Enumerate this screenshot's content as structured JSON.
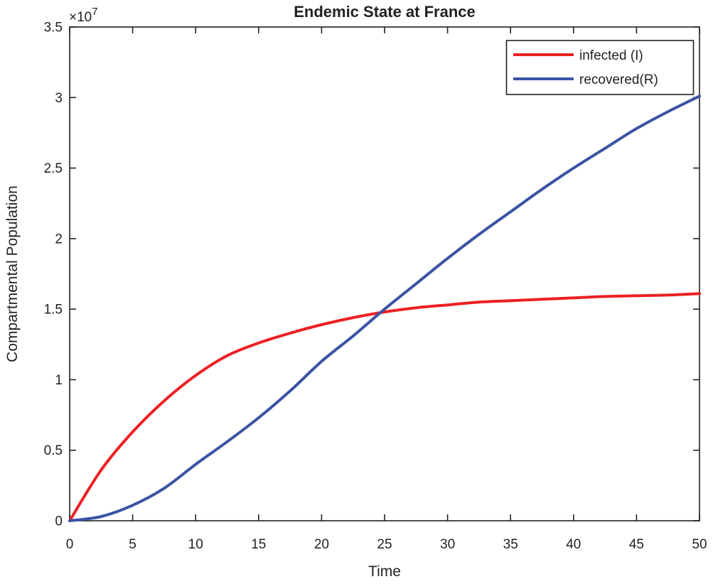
{
  "figure": {
    "background_color": "#ffffff",
    "text_color": "#231f20",
    "axes_color": "#231f20"
  },
  "chart_data": {
    "type": "line",
    "title": "Endemic State at France",
    "xlabel": "Time",
    "ylabel": "Compartmental Population",
    "xlim": [
      0,
      50
    ],
    "ylim": [
      0,
      35000000
    ],
    "grid": false,
    "box": true,
    "legend_position": "top-right-inside",
    "x_tick_values": [
      0,
      5,
      10,
      15,
      20,
      25,
      30,
      35,
      40,
      45,
      50
    ],
    "x_tick_labels": [
      "0",
      "5",
      "10",
      "15",
      "20",
      "25",
      "30",
      "35",
      "40",
      "45",
      "50"
    ],
    "y_tick_values": [
      0,
      5000000,
      10000000,
      15000000,
      20000000,
      25000000,
      30000000,
      35000000
    ],
    "y_tick_labels": [
      "0",
      "0.5",
      "1",
      "1.5",
      "2",
      "2.5",
      "3",
      "3.5"
    ],
    "y_multiplier": {
      "prefix": "×10",
      "exponent": "7"
    },
    "x": [
      0,
      2.5,
      5,
      7.5,
      10,
      12.5,
      15,
      17.5,
      20,
      22.5,
      25,
      27.5,
      30,
      32.5,
      35,
      37.5,
      40,
      42.5,
      45,
      47.5,
      50
    ],
    "series": [
      {
        "name": "infected (I)",
        "color": "#ec2024",
        "line_width": 4,
        "values": [
          0,
          3600000,
          6300000,
          8500000,
          10300000,
          11700000,
          12600000,
          13300000,
          13900000,
          14400000,
          14800000,
          15100000,
          15300000,
          15500000,
          15600000,
          15700000,
          15800000,
          15900000,
          15950000,
          16000000,
          16100000
        ]
      },
      {
        "name": "recovered(R)",
        "color": "#3a53a4",
        "line_width": 4,
        "values": [
          0,
          300000,
          1100000,
          2300000,
          4000000,
          5600000,
          7300000,
          9200000,
          11300000,
          13100000,
          15000000,
          16800000,
          18600000,
          20300000,
          21900000,
          23500000,
          25000000,
          26400000,
          27800000,
          29000000,
          30100000
        ]
      }
    ]
  }
}
